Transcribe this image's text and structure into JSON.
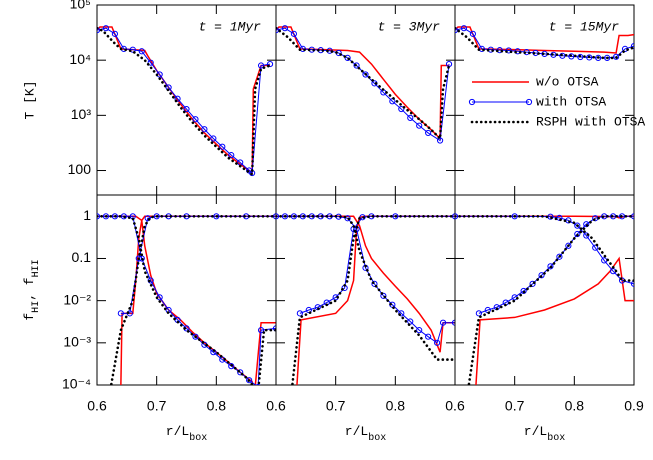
{
  "chart_data": [
    {
      "type": "line",
      "title": "t = 1Myr",
      "ylabel": "T [K]",
      "log": true,
      "xlim": [
        0.6,
        0.9
      ],
      "ylim": [
        36,
        100000
      ],
      "yticks": [
        100,
        {
          "value": 1000,
          "label": "10³"
        },
        {
          "value": 10000,
          "label": "10⁴"
        },
        {
          "value": 100000,
          "label": "10⁵"
        }
      ],
      "series": [
        {
          "color": "#ff0000",
          "style": "solid",
          "x": [
            0.6,
            0.605,
            0.62,
            0.625,
            0.64,
            0.66,
            0.68,
            0.685,
            0.7,
            0.72,
            0.74,
            0.76,
            0.78,
            0.8,
            0.82,
            0.84,
            0.855,
            0.86,
            0.862,
            0.875,
            0.89
          ],
          "values": [
            35000,
            40000,
            40000,
            40000,
            16000,
            15500,
            15000,
            12000,
            6500,
            3200,
            1600,
            850,
            480,
            300,
            190,
            130,
            100,
            90,
            3000,
            8000,
            8000
          ]
        },
        {
          "color": "#0000ff",
          "style": "solid",
          "marker": "o",
          "x": [
            0.6,
            0.615,
            0.63,
            0.645,
            0.66,
            0.675,
            0.69,
            0.705,
            0.72,
            0.735,
            0.75,
            0.765,
            0.78,
            0.795,
            0.81,
            0.825,
            0.84,
            0.855,
            0.86,
            0.875,
            0.89
          ],
          "values": [
            35000,
            38000,
            30000,
            16000,
            15500,
            14500,
            9000,
            5500,
            3200,
            2000,
            1300,
            850,
            560,
            380,
            270,
            190,
            140,
            100,
            90,
            8000,
            8500
          ]
        },
        {
          "color": "#000000",
          "style": "dotted",
          "x": [
            0.6,
            0.61,
            0.62,
            0.63,
            0.64,
            0.66,
            0.68,
            0.7,
            0.72,
            0.74,
            0.76,
            0.78,
            0.8,
            0.82,
            0.84,
            0.86,
            0.865,
            0.875,
            0.89
          ],
          "values": [
            38000,
            34000,
            26000,
            20000,
            16000,
            14500,
            10000,
            5500,
            2800,
            1400,
            750,
            430,
            270,
            170,
            120,
            85,
            3000,
            7000,
            8000
          ]
        }
      ]
    },
    {
      "type": "line",
      "title": "t = 3Myr",
      "log": true,
      "xlim": [
        0.6,
        0.9
      ],
      "ylim": [
        36,
        100000
      ],
      "series": [
        {
          "color": "#ff0000",
          "style": "solid",
          "x": [
            0.6,
            0.605,
            0.62,
            0.625,
            0.64,
            0.68,
            0.72,
            0.74,
            0.76,
            0.78,
            0.8,
            0.82,
            0.84,
            0.86,
            0.875,
            0.877,
            0.89
          ],
          "values": [
            35000,
            40000,
            40000,
            40000,
            16000,
            15500,
            15000,
            14000,
            8500,
            4500,
            2400,
            1400,
            850,
            550,
            380,
            8000,
            8000
          ]
        },
        {
          "color": "#0000ff",
          "style": "solid",
          "marker": "o",
          "x": [
            0.6,
            0.615,
            0.63,
            0.645,
            0.66,
            0.675,
            0.69,
            0.705,
            0.72,
            0.735,
            0.75,
            0.765,
            0.78,
            0.795,
            0.81,
            0.825,
            0.84,
            0.855,
            0.875,
            0.89
          ],
          "values": [
            35000,
            38000,
            30000,
            16000,
            15500,
            15200,
            14800,
            13500,
            11000,
            8000,
            5500,
            3800,
            2600,
            1800,
            1300,
            900,
            650,
            480,
            350,
            8500
          ]
        },
        {
          "color": "#000000",
          "style": "dotted",
          "x": [
            0.6,
            0.62,
            0.64,
            0.68,
            0.7,
            0.72,
            0.74,
            0.76,
            0.78,
            0.8,
            0.82,
            0.84,
            0.86,
            0.875,
            0.88,
            0.89
          ],
          "values": [
            38000,
            26000,
            15500,
            15000,
            14000,
            11000,
            7000,
            4500,
            2900,
            1900,
            1250,
            850,
            550,
            380,
            3000,
            8000
          ]
        }
      ]
    },
    {
      "type": "line",
      "title": "t = 15Myr",
      "log": true,
      "xlim": [
        0.6,
        0.9
      ],
      "ylim": [
        36,
        100000
      ],
      "legend": "center right",
      "series": [
        {
          "name": "w/o OTSA",
          "color": "#ff0000",
          "style": "solid",
          "x": [
            0.6,
            0.605,
            0.62,
            0.625,
            0.64,
            0.7,
            0.75,
            0.8,
            0.85,
            0.87,
            0.875,
            0.89,
            0.9
          ],
          "values": [
            35000,
            40000,
            40000,
            40000,
            16000,
            15500,
            15000,
            14500,
            14000,
            13500,
            28000,
            28000,
            29000
          ]
        },
        {
          "name": "with OTSA",
          "color": "#0000ff",
          "style": "solid",
          "marker": "o",
          "x": [
            0.6,
            0.615,
            0.63,
            0.645,
            0.66,
            0.675,
            0.69,
            0.705,
            0.72,
            0.735,
            0.75,
            0.765,
            0.78,
            0.795,
            0.81,
            0.825,
            0.84,
            0.855,
            0.87,
            0.885,
            0.9
          ],
          "values": [
            35000,
            38000,
            30000,
            16000,
            15500,
            15200,
            15000,
            14500,
            14000,
            13500,
            13000,
            12500,
            12000,
            11700,
            11400,
            11200,
            11000,
            11000,
            11500,
            16000,
            18000
          ]
        },
        {
          "name": "RSPH with OTSA",
          "color": "#000000",
          "style": "dotted",
          "x": [
            0.6,
            0.62,
            0.64,
            0.7,
            0.75,
            0.8,
            0.85,
            0.87,
            0.885,
            0.9
          ],
          "values": [
            38000,
            26000,
            15500,
            14000,
            13000,
            12000,
            11000,
            11000,
            15000,
            17000
          ]
        }
      ]
    },
    {
      "type": "line",
      "ylabel": [
        "f",
        "HI",
        ", f",
        "HII"
      ],
      "xlabel": [
        "r/L",
        "box"
      ],
      "log": true,
      "xlim": [
        0.6,
        0.9
      ],
      "ylim": [
        0.0001,
        3.2
      ],
      "yticks": [
        {
          "value": 0.0001,
          "label": "10⁻⁴"
        },
        {
          "value": 0.001,
          "label": "10⁻³"
        },
        {
          "value": 0.01,
          "label": "10⁻²"
        },
        0.1,
        1
      ],
      "xticks": [
        0.6,
        0.7,
        0.8
      ],
      "series": [
        {
          "color": "#ff0000",
          "style": "solid",
          "x": [
            0.632,
            0.64,
            0.642,
            0.66,
            0.665,
            0.67,
            0.675,
            0.68,
            0.7,
            0.8,
            0.9
          ],
          "values": [
            2e-05,
            0.0001,
            0.005,
            0.005,
            0.03,
            0.3,
            0.8,
            1,
            1,
            1,
            1
          ]
        },
        {
          "color": "#ff0000",
          "style": "solid",
          "x": [
            0.6,
            0.65,
            0.665,
            0.675,
            0.68,
            0.69,
            0.7,
            0.72,
            0.74,
            0.76,
            0.78,
            0.8,
            0.82,
            0.84,
            0.86,
            0.862,
            0.875,
            0.9
          ],
          "values": [
            1,
            1,
            1,
            0.8,
            0.2,
            0.04,
            0.015,
            0.006,
            0.0035,
            0.0018,
            0.001,
            0.0006,
            0.00035,
            0.0002,
            0.00012,
            3e-05,
            0.003,
            0.003
          ]
        },
        {
          "color": "#0000ff",
          "style": "solid",
          "marker": "o",
          "x": [
            0.64,
            0.655,
            0.67,
            0.685,
            0.7,
            0.72,
            0.75,
            0.8,
            0.85,
            0.9
          ],
          "values": [
            0.005,
            0.005,
            0.1,
            0.9,
            1,
            1,
            1,
            1,
            1,
            1
          ]
        },
        {
          "color": "#0000ff",
          "style": "solid",
          "marker": "o",
          "x": [
            0.6,
            0.615,
            0.63,
            0.645,
            0.66,
            0.675,
            0.69,
            0.705,
            0.72,
            0.735,
            0.75,
            0.765,
            0.78,
            0.795,
            0.81,
            0.825,
            0.84,
            0.855,
            0.87,
            0.875,
            0.9
          ],
          "values": [
            1,
            1,
            1,
            1,
            1,
            0.1,
            0.03,
            0.012,
            0.006,
            0.0035,
            0.0022,
            0.0014,
            0.0009,
            0.0006,
            0.0004,
            0.00028,
            0.0002,
            0.00013,
            9e-05,
            0.002,
            0.0022
          ]
        },
        {
          "color": "#000000",
          "style": "dotted",
          "x": [
            0.62,
            0.64,
            0.66,
            0.67,
            0.68,
            0.69,
            0.7,
            0.75,
            0.9
          ],
          "values": [
            5e-05,
            0.002,
            0.01,
            0.1,
            0.6,
            0.95,
            1,
            1,
            1
          ]
        },
        {
          "color": "#000000",
          "style": "dotted",
          "x": [
            0.6,
            0.64,
            0.66,
            0.67,
            0.68,
            0.7,
            0.72,
            0.75,
            0.8,
            0.85,
            0.87,
            0.88,
            0.9
          ],
          "values": [
            1,
            1,
            0.9,
            0.3,
            0.05,
            0.012,
            0.005,
            0.002,
            0.0006,
            0.00015,
            7e-05,
            0.002,
            0.002
          ]
        }
      ]
    },
    {
      "type": "line",
      "xlabel": [
        "r/L",
        "box"
      ],
      "log": true,
      "xlim": [
        0.6,
        0.9
      ],
      "ylim": [
        0.0001,
        3.2
      ],
      "xticks": [
        0.6,
        0.7,
        0.8
      ],
      "series": [
        {
          "color": "#ff0000",
          "style": "solid",
          "x": [
            0.632,
            0.642,
            0.7,
            0.72,
            0.73,
            0.735,
            0.74,
            0.75,
            0.8,
            0.9
          ],
          "values": [
            2e-05,
            0.0035,
            0.005,
            0.01,
            0.03,
            0.5,
            0.95,
            1,
            1,
            1
          ]
        },
        {
          "color": "#ff0000",
          "style": "solid",
          "x": [
            0.6,
            0.7,
            0.73,
            0.74,
            0.75,
            0.76,
            0.78,
            0.8,
            0.82,
            0.84,
            0.86,
            0.875,
            0.88,
            0.9
          ],
          "values": [
            1,
            1,
            1,
            0.6,
            0.2,
            0.1,
            0.045,
            0.022,
            0.011,
            0.005,
            0.002,
            0.0006,
            0.003,
            0.003
          ]
        },
        {
          "color": "#0000ff",
          "style": "solid",
          "marker": "o",
          "x": [
            0.64,
            0.655,
            0.67,
            0.685,
            0.7,
            0.715,
            0.73,
            0.745,
            0.76,
            0.8,
            0.9
          ],
          "values": [
            0.005,
            0.006,
            0.007,
            0.009,
            0.012,
            0.02,
            0.5,
            0.95,
            1,
            1,
            1
          ]
        },
        {
          "color": "#0000ff",
          "style": "solid",
          "marker": "o",
          "x": [
            0.6,
            0.615,
            0.63,
            0.645,
            0.66,
            0.675,
            0.69,
            0.705,
            0.72,
            0.735,
            0.75,
            0.765,
            0.78,
            0.795,
            0.81,
            0.825,
            0.84,
            0.855,
            0.87,
            0.88,
            0.9
          ],
          "values": [
            1,
            1,
            1,
            1,
            1,
            1,
            1,
            0.98,
            0.9,
            0.5,
            0.06,
            0.025,
            0.013,
            0.008,
            0.005,
            0.0032,
            0.002,
            0.0014,
            0.001,
            0.003,
            0.003
          ]
        },
        {
          "color": "#000000",
          "style": "dotted",
          "x": [
            0.625,
            0.64,
            0.7,
            0.72,
            0.73,
            0.74,
            0.76,
            0.9
          ],
          "values": [
            5e-05,
            0.004,
            0.01,
            0.03,
            0.3,
            0.9,
            1,
            1
          ]
        },
        {
          "color": "#000000",
          "style": "dotted",
          "x": [
            0.6,
            0.7,
            0.72,
            0.73,
            0.74,
            0.76,
            0.8,
            0.84,
            0.87,
            0.88,
            0.9
          ],
          "values": [
            1,
            1,
            0.95,
            0.6,
            0.15,
            0.03,
            0.006,
            0.0015,
            0.0004,
            0.0004,
            0.0004
          ]
        }
      ]
    },
    {
      "type": "line",
      "xlabel": [
        "r/L",
        "box"
      ],
      "log": true,
      "xlim": [
        0.6,
        0.9
      ],
      "ylim": [
        0.0001,
        3.2
      ],
      "xticks": [
        0.6,
        0.7,
        0.8,
        0.9
      ],
      "series": [
        {
          "color": "#ff0000",
          "style": "solid",
          "x": [
            0.632,
            0.642,
            0.7,
            0.75,
            0.8,
            0.84,
            0.86,
            0.875,
            0.885,
            0.9
          ],
          "values": [
            2e-05,
            0.0035,
            0.004,
            0.006,
            0.011,
            0.025,
            0.05,
            0.1,
            0.01,
            0.01
          ]
        },
        {
          "color": "#ff0000",
          "style": "solid",
          "x": [
            0.6,
            0.8,
            0.87,
            0.875,
            0.885,
            0.9
          ],
          "values": [
            1,
            1,
            0.98,
            0.92,
            1,
            1
          ]
        },
        {
          "color": "#0000ff",
          "style": "solid",
          "marker": "o",
          "x": [
            0.64,
            0.655,
            0.67,
            0.685,
            0.7,
            0.715,
            0.73,
            0.745,
            0.76,
            0.775,
            0.79,
            0.805,
            0.82,
            0.835,
            0.85,
            0.865,
            0.88,
            0.9
          ],
          "values": [
            0.005,
            0.006,
            0.007,
            0.009,
            0.012,
            0.017,
            0.025,
            0.04,
            0.065,
            0.11,
            0.2,
            0.38,
            0.65,
            0.9,
            1,
            1,
            1,
            1
          ]
        },
        {
          "color": "#0000ff",
          "style": "solid",
          "marker": "o",
          "x": [
            0.6,
            0.7,
            0.76,
            0.775,
            0.79,
            0.805,
            0.82,
            0.835,
            0.85,
            0.865,
            0.88,
            0.9
          ],
          "values": [
            1,
            1,
            0.98,
            0.92,
            0.8,
            0.6,
            0.35,
            0.18,
            0.09,
            0.05,
            0.03,
            0.025
          ]
        },
        {
          "color": "#000000",
          "style": "dotted",
          "x": [
            0.62,
            0.64,
            0.7,
            0.76,
            0.8,
            0.83,
            0.85,
            0.9
          ],
          "values": [
            5e-05,
            0.004,
            0.01,
            0.06,
            0.3,
            0.8,
            1,
            1
          ]
        },
        {
          "color": "#000000",
          "style": "dotted",
          "x": [
            0.6,
            0.75,
            0.8,
            0.83,
            0.85,
            0.87,
            0.88,
            0.9
          ],
          "values": [
            1,
            1,
            0.7,
            0.3,
            0.12,
            0.05,
            0.03,
            0.03
          ]
        }
      ]
    }
  ]
}
